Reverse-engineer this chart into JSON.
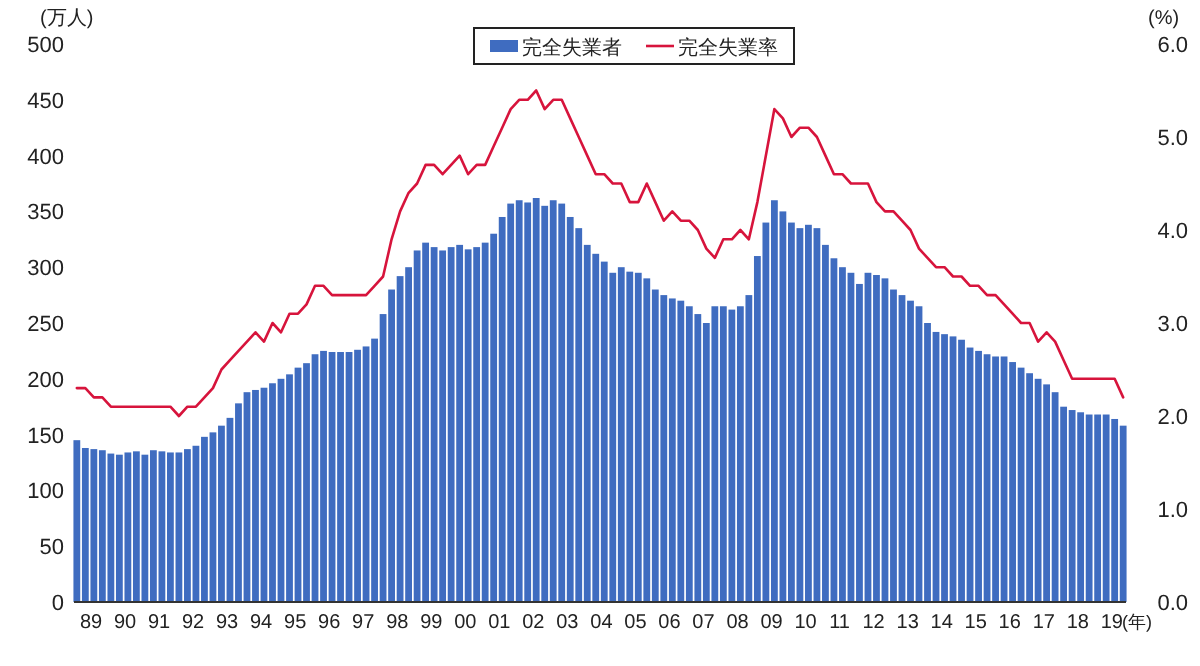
{
  "chart_data": {
    "type": "bar",
    "xlabel": "(年)",
    "ylabel": "(万人)",
    "y2label": "(%)",
    "legend": "top",
    "x": [
      "1989-02",
      "1989-05",
      "1989-08",
      "1989-11",
      "1990-02",
      "1990-05",
      "1990-08",
      "1990-11",
      "1991-02",
      "1991-05",
      "1991-08",
      "1991-11",
      "1992-02",
      "1992-05",
      "1992-08",
      "1992-11",
      "1993-02",
      "1993-05",
      "1993-08",
      "1993-11",
      "1994-02",
      "1994-05",
      "1994-08",
      "1994-11",
      "1995-02",
      "1995-05",
      "1995-08",
      "1995-11",
      "1996-02",
      "1996-05",
      "1996-08",
      "1996-11",
      "1997-02",
      "1997-05",
      "1997-08",
      "1997-11",
      "1998-02",
      "1998-05",
      "1998-08",
      "1998-11",
      "1999-02",
      "1999-05",
      "1999-08",
      "1999-11",
      "2000-02",
      "2000-05",
      "2000-08",
      "2000-11",
      "2001-02",
      "2001-05",
      "2001-08",
      "2001-11",
      "2002-02",
      "2002-05",
      "2002-08",
      "2002-11",
      "2003-02",
      "2003-05",
      "2003-08",
      "2003-11",
      "2004-02",
      "2004-05",
      "2004-08",
      "2004-11",
      "2005-02",
      "2005-05",
      "2005-08",
      "2005-11",
      "2006-02",
      "2006-05",
      "2006-08",
      "2006-11",
      "2007-02",
      "2007-05",
      "2007-08",
      "2007-11",
      "2008-02",
      "2008-05",
      "2008-08",
      "2008-11",
      "2009-02",
      "2009-05",
      "2009-08",
      "2009-11",
      "2010-02",
      "2010-05",
      "2010-08",
      "2010-11",
      "2011-02",
      "2011-05",
      "2011-08",
      "2011-11",
      "2012-02",
      "2012-05",
      "2012-08",
      "2012-11",
      "2013-02",
      "2013-05",
      "2013-08",
      "2013-11",
      "2014-02",
      "2014-05",
      "2014-08",
      "2014-11",
      "2015-02",
      "2015-05",
      "2015-08",
      "2015-11",
      "2016-02",
      "2016-05",
      "2016-08",
      "2016-11",
      "2017-02",
      "2017-05",
      "2017-08",
      "2017-11",
      "2018-02",
      "2018-05",
      "2018-08",
      "2018-11",
      "2019-02",
      "2019-05",
      "2019-08",
      "2019-11"
    ],
    "series": [
      {
        "name": "完全失業者",
        "color": "#3f6cc0",
        "values": [
          145,
          138,
          137,
          136,
          133,
          132,
          134,
          135,
          132,
          136,
          135,
          134,
          134,
          137,
          140,
          148,
          152,
          158,
          165,
          178,
          188,
          190,
          192,
          196,
          200,
          204,
          210,
          214,
          222,
          225,
          224,
          224,
          224,
          226,
          229,
          236,
          258,
          280,
          292,
          300,
          315,
          322,
          318,
          315,
          318,
          320,
          316,
          318,
          322,
          330,
          345,
          357,
          360,
          358,
          362,
          355,
          360,
          357,
          345,
          335,
          320,
          312,
          305,
          295,
          300,
          296,
          295,
          290,
          280,
          275,
          272,
          270,
          265,
          258,
          250,
          265,
          265,
          262,
          265,
          275,
          310,
          340,
          360,
          350,
          340,
          335,
          338,
          335,
          320,
          308,
          300,
          295,
          285,
          295,
          293,
          290,
          280,
          275,
          270,
          265,
          250,
          242,
          240,
          238,
          235,
          228,
          225,
          222,
          220,
          220,
          215,
          210,
          205,
          200,
          195,
          188,
          175,
          172,
          170,
          168,
          168,
          168,
          164,
          158
        ]
      },
      {
        "name": "完全失業率",
        "type": "line",
        "axis": "y2",
        "color": "#d7143c",
        "values": [
          2.3,
          2.3,
          2.2,
          2.2,
          2.1,
          2.1,
          2.1,
          2.1,
          2.1,
          2.1,
          2.1,
          2.1,
          2.0,
          2.1,
          2.1,
          2.2,
          2.3,
          2.5,
          2.6,
          2.7,
          2.8,
          2.9,
          2.8,
          3.0,
          2.9,
          3.1,
          3.1,
          3.2,
          3.4,
          3.4,
          3.3,
          3.3,
          3.3,
          3.3,
          3.3,
          3.4,
          3.5,
          3.9,
          4.2,
          4.4,
          4.5,
          4.7,
          4.7,
          4.6,
          4.7,
          4.8,
          4.6,
          4.7,
          4.7,
          4.9,
          5.1,
          5.3,
          5.4,
          5.4,
          5.5,
          5.3,
          5.4,
          5.4,
          5.2,
          5.0,
          4.8,
          4.6,
          4.6,
          4.5,
          4.5,
          4.3,
          4.3,
          4.5,
          4.3,
          4.1,
          4.2,
          4.1,
          4.1,
          4.0,
          3.8,
          3.7,
          3.9,
          3.9,
          4.0,
          3.9,
          4.3,
          4.8,
          5.3,
          5.2,
          5.0,
          5.1,
          5.1,
          5.0,
          4.8,
          4.6,
          4.6,
          4.5,
          4.5,
          4.5,
          4.3,
          4.2,
          4.2,
          4.1,
          4.0,
          3.8,
          3.7,
          3.6,
          3.6,
          3.5,
          3.5,
          3.4,
          3.4,
          3.3,
          3.3,
          3.2,
          3.1,
          3.0,
          3.0,
          2.8,
          2.9,
          2.8,
          2.6,
          2.4,
          2.4,
          2.4,
          2.4,
          2.4,
          2.4,
          2.2
        ]
      }
    ],
    "xlim": [
      "1989-01",
      "2019-12"
    ],
    "xticks": [
      {
        "value": "1989-07",
        "label": "89"
      },
      {
        "value": "1990-07",
        "label": "90"
      },
      {
        "value": "1991-07",
        "label": "91"
      },
      {
        "value": "1992-07",
        "label": "92"
      },
      {
        "value": "1993-07",
        "label": "93"
      },
      {
        "value": "1994-07",
        "label": "94"
      },
      {
        "value": "1995-07",
        "label": "95"
      },
      {
        "value": "1996-07",
        "label": "96"
      },
      {
        "value": "1997-07",
        "label": "97"
      },
      {
        "value": "1998-07",
        "label": "98"
      },
      {
        "value": "1999-07",
        "label": "99"
      },
      {
        "value": "2000-07",
        "label": "00"
      },
      {
        "value": "2001-07",
        "label": "01"
      },
      {
        "value": "2002-07",
        "label": "02"
      },
      {
        "value": "2003-07",
        "label": "03"
      },
      {
        "value": "2004-07",
        "label": "04"
      },
      {
        "value": "2005-07",
        "label": "05"
      },
      {
        "value": "2006-07",
        "label": "06"
      },
      {
        "value": "2007-07",
        "label": "07"
      },
      {
        "value": "2008-07",
        "label": "08"
      },
      {
        "value": "2009-07",
        "label": "09"
      },
      {
        "value": "2010-07",
        "label": "10"
      },
      {
        "value": "2011-07",
        "label": "11"
      },
      {
        "value": "2012-07",
        "label": "12"
      },
      {
        "value": "2013-07",
        "label": "13"
      },
      {
        "value": "2014-07",
        "label": "14"
      },
      {
        "value": "2015-07",
        "label": "15"
      },
      {
        "value": "2016-07",
        "label": "16"
      },
      {
        "value": "2017-07",
        "label": "17"
      },
      {
        "value": "2018-07",
        "label": "18"
      },
      {
        "value": "2019-07",
        "label": "19"
      }
    ],
    "ylim": [
      0,
      500
    ],
    "yticks": [
      0,
      50,
      100,
      150,
      200,
      250,
      300,
      350,
      400,
      450,
      500
    ],
    "y2lim": [
      0,
      6
    ],
    "y2ticks": [
      {
        "value": 0,
        "label": "0.0"
      },
      {
        "value": 1,
        "label": "1.0"
      },
      {
        "value": 2,
        "label": "2.0"
      },
      {
        "value": 3,
        "label": "3.0"
      },
      {
        "value": 4,
        "label": "4.0"
      },
      {
        "value": 5,
        "label": "5.0"
      },
      {
        "value": 6,
        "label": "6.0"
      }
    ]
  }
}
